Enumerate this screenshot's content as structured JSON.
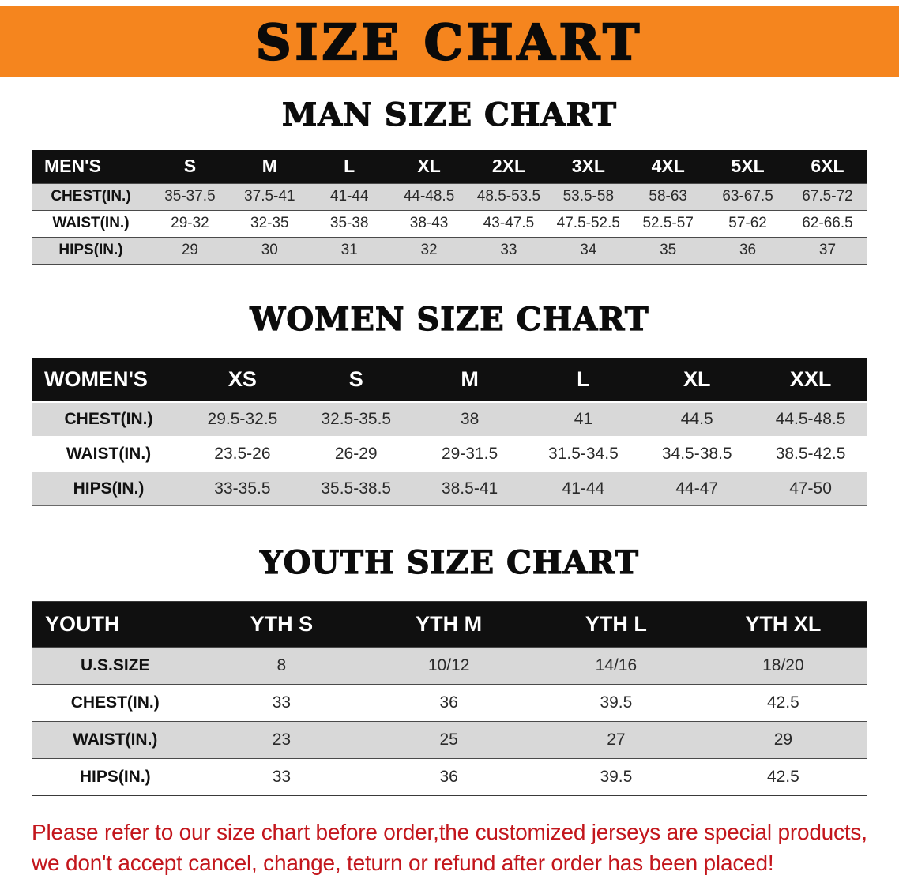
{
  "banner": {
    "title": "SIZE CHART"
  },
  "men": {
    "heading": "MAN SIZE CHART",
    "header": [
      "MEN'S",
      "S",
      "M",
      "L",
      "XL",
      "2XL",
      "3XL",
      "4XL",
      "5XL",
      "6XL"
    ],
    "rows": [
      [
        "CHEST(IN.)",
        "35-37.5",
        "37.5-41",
        "41-44",
        "44-48.5",
        "48.5-53.5",
        "53.5-58",
        "58-63",
        "63-67.5",
        "67.5-72"
      ],
      [
        "WAIST(IN.)",
        "29-32",
        "32-35",
        "35-38",
        "38-43",
        "43-47.5",
        "47.5-52.5",
        "52.5-57",
        "57-62",
        "62-66.5"
      ],
      [
        "HIPS(IN.)",
        "29",
        "30",
        "31",
        "32",
        "33",
        "34",
        "35",
        "36",
        "37"
      ]
    ]
  },
  "women": {
    "heading": "WOMEN SIZE CHART",
    "header": [
      "WOMEN'S",
      "XS",
      "S",
      "M",
      "L",
      "XL",
      "XXL"
    ],
    "rows": [
      [
        "CHEST(IN.)",
        "29.5-32.5",
        "32.5-35.5",
        "38",
        "41",
        "44.5",
        "44.5-48.5"
      ],
      [
        "WAIST(IN.)",
        "23.5-26",
        "26-29",
        "29-31.5",
        "31.5-34.5",
        "34.5-38.5",
        "38.5-42.5"
      ],
      [
        "HIPS(IN.)",
        "33-35.5",
        "35.5-38.5",
        "38.5-41",
        "41-44",
        "44-47",
        "47-50"
      ]
    ]
  },
  "youth": {
    "heading": "YOUTH SIZE CHART",
    "header": [
      "YOUTH",
      "YTH S",
      "YTH M",
      "YTH L",
      "YTH XL"
    ],
    "rows": [
      [
        "U.S.SIZE",
        "8",
        "10/12",
        "14/16",
        "18/20"
      ],
      [
        "CHEST(IN.)",
        "33",
        "36",
        "39.5",
        "42.5"
      ],
      [
        "WAIST(IN.)",
        "23",
        "25",
        "27",
        "29"
      ],
      [
        "HIPS(IN.)",
        "33",
        "36",
        "39.5",
        "42.5"
      ]
    ]
  },
  "disclaimer": {
    "line1": "Please refer to our size chart before order,the customized jerseys are special products,",
    "line2": "we don't accept cancel, change, teturn or refund after order has been placed!"
  },
  "colors": {
    "banner_bg": "#f5851e",
    "table_header_bg": "#101010",
    "row_stripe": "#d8d8d8",
    "disclaimer_text": "#c3161c"
  }
}
